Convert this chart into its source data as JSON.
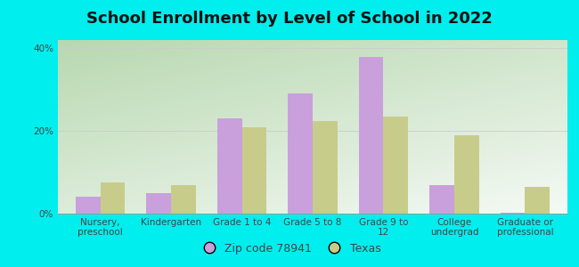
{
  "title": "School Enrollment by Level of School in 2022",
  "categories": [
    "Nursery,\npreschool",
    "Kindergarten",
    "Grade 1 to 4",
    "Grade 5 to 8",
    "Grade 9 to\n12",
    "College\nundergrad",
    "Graduate or\nprofessional"
  ],
  "zip_values": [
    4.0,
    5.0,
    23.0,
    29.0,
    38.0,
    7.0,
    0.2
  ],
  "texas_values": [
    7.5,
    7.0,
    21.0,
    22.5,
    23.5,
    19.0,
    6.5
  ],
  "zip_color": "#c9a0dc",
  "texas_color": "#c8cc8a",
  "background_outer": "#00eeee",
  "ylim": [
    0,
    42
  ],
  "yticks": [
    0,
    20,
    40
  ],
  "ytick_labels": [
    "0%",
    "20%",
    "40%"
  ],
  "legend_zip_label": "Zip code 78941",
  "legend_texas_label": "Texas",
  "bar_width": 0.35,
  "title_fontsize": 13,
  "tick_fontsize": 7.5,
  "legend_fontsize": 9,
  "gradient_bottom_left": "#b8d8b0",
  "gradient_top_right": "#f5faf5"
}
